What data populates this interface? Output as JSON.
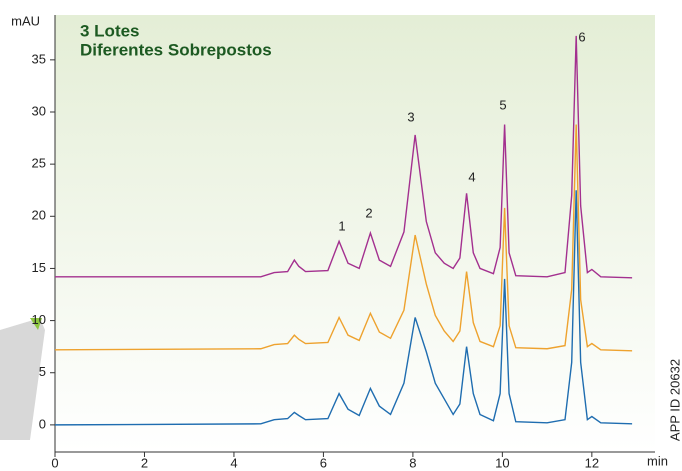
{
  "chart_data": {
    "type": "line",
    "title": [
      "3 Lotes",
      "Diferentes Sobrepostos"
    ],
    "y_label": "mAU",
    "x_label": "min",
    "side_note": "APP ID 20632",
    "annotations": [
      "1",
      "2",
      "3",
      "4",
      "5",
      "6"
    ],
    "x": [
      0,
      4.6,
      4.9,
      5.2,
      5.35,
      5.45,
      5.6,
      6.1,
      6.35,
      6.55,
      6.8,
      7.05,
      7.25,
      7.5,
      7.8,
      8.05,
      8.3,
      8.5,
      8.7,
      8.9,
      9.05,
      9.2,
      9.35,
      9.5,
      9.8,
      9.95,
      10.05,
      10.15,
      10.3,
      11.0,
      11.4,
      11.55,
      11.65,
      11.75,
      11.9,
      12.0,
      12.2,
      12.9
    ],
    "series": [
      {
        "color": "#1f6db0",
        "values": [
          0,
          0.1,
          0.5,
          0.6,
          1.2,
          0.9,
          0.5,
          0.6,
          3.0,
          1.5,
          0.9,
          3.5,
          1.8,
          1.0,
          4.0,
          10.3,
          7.0,
          4.0,
          2.5,
          1.0,
          2.0,
          7.5,
          3.0,
          1.0,
          0.4,
          3.0,
          14,
          3.0,
          0.3,
          0.2,
          0.5,
          6,
          22.5,
          6,
          0.5,
          0.8,
          0.2,
          0.1
        ]
      },
      {
        "color": "#eea22e",
        "values": [
          7.2,
          7.3,
          7.7,
          7.8,
          8.6,
          8.2,
          7.8,
          7.9,
          10.3,
          8.6,
          8.1,
          10.7,
          8.9,
          8.3,
          11.0,
          18.2,
          13.5,
          10.5,
          9.0,
          8.0,
          9.0,
          14.7,
          9.8,
          8.0,
          7.5,
          9.5,
          20.8,
          9.5,
          7.4,
          7.3,
          7.6,
          13,
          28.8,
          12,
          7.5,
          7.8,
          7.2,
          7.1
        ]
      },
      {
        "color": "#a3308f",
        "values": [
          14.2,
          14.2,
          14.6,
          14.7,
          15.8,
          15.2,
          14.7,
          14.8,
          17.6,
          15.5,
          15.0,
          18.4,
          15.8,
          15.2,
          18.5,
          27.8,
          19.5,
          16.5,
          15.5,
          15.0,
          16.0,
          22.2,
          16.5,
          15.0,
          14.5,
          17,
          28.8,
          16.5,
          14.3,
          14.2,
          14.6,
          22,
          37.3,
          21,
          14.6,
          14.9,
          14.2,
          14.1
        ]
      }
    ],
    "xlim": [
      0,
      13.3
    ],
    "ylim": [
      -2.6,
      39.3
    ],
    "xticks": [
      0,
      2,
      4,
      6,
      8,
      10,
      12
    ],
    "yticks": [
      0,
      5,
      10,
      15,
      20,
      25,
      30,
      35
    ]
  }
}
